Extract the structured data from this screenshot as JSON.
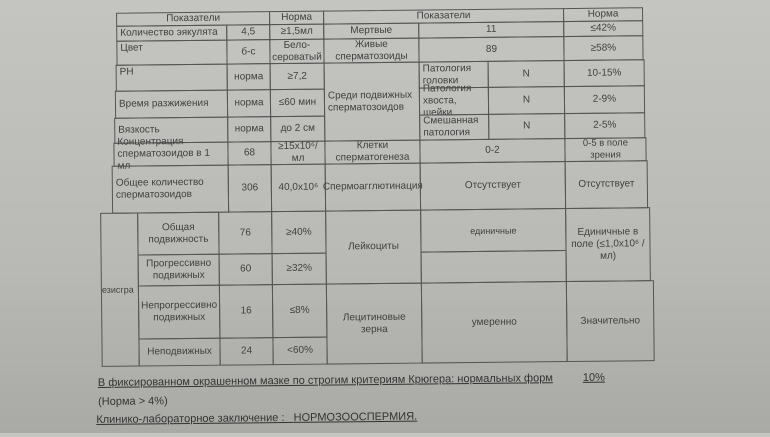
{
  "left": {
    "header": {
      "indicator": "Показатели",
      "norm": "Норма"
    },
    "rows": [
      {
        "label": "Количество эякулята",
        "value": "4,5",
        "norm": "≥1,5мл"
      },
      {
        "label": "Цвет",
        "value": "б-с",
        "norm": "Бело-сероватый"
      },
      {
        "label": "PH",
        "value": "норма",
        "norm": "≥7,2"
      },
      {
        "label": "Время разжижения",
        "value": "норма",
        "norm": "≤60 мин"
      },
      {
        "label": "Вязкость",
        "value": "норма",
        "norm": "до 2 см"
      },
      {
        "label": "Концентрация сперматозоидов в 1 мл",
        "value": "68",
        "norm": "≥15x10⁶/мл"
      },
      {
        "label": "Общее количество сперматозоидов",
        "value": "306",
        "norm": "40,0x10⁶"
      }
    ],
    "group_label": "езисгра",
    "motility": [
      {
        "label": "Общая подвижность",
        "value": "76",
        "norm": "≥40%"
      },
      {
        "label": "Прогрессивно подвижных",
        "value": "60",
        "norm": "≥32%"
      },
      {
        "label": "Непрогрессивно подвижных",
        "value": "16",
        "norm": "≤8%"
      },
      {
        "label": "Неподвижных",
        "value": "24",
        "norm": "<60%"
      }
    ]
  },
  "right": {
    "header": {
      "indicator": "Показатели",
      "norm": "Норма"
    },
    "dead": {
      "label": "Мертвые",
      "value": "11",
      "norm": "≤42%"
    },
    "alive": {
      "label": "Живые сперматозоиды",
      "value": "89",
      "norm": "≥58%"
    },
    "motile_label": "Среди подвижных сперматозоидов",
    "pathologies": [
      {
        "label": "Патология головки",
        "value": "N",
        "norm": "10-15%"
      },
      {
        "label": "Патология хвоста, шейки",
        "value": "N",
        "norm": "2-9%"
      },
      {
        "label": "Смешанная патология",
        "value": "N",
        "norm": "2-5%"
      }
    ],
    "spermatogenesis": {
      "label": "Клетки сперматогенеза",
      "value": "0-2",
      "norm": "0-5 в поле зрения"
    },
    "agglutination": {
      "label": "Спермоагглютинация",
      "value": "Отсутствует",
      "norm": "Отсутствует"
    },
    "leukocytes": {
      "label": "Лейкоциты",
      "value": "единичные",
      "value2": "",
      "norm": "Единичные в поле (≤1,0x10⁶ / мл)"
    },
    "lecithin": {
      "label": "Лецитиновые зерна",
      "value": "умеренно",
      "norm": "Значительно"
    }
  },
  "footer": {
    "kruger": "В фиксированном окрашенном мазке по строгим критериям Крюгера:  нормальных форм",
    "kruger_value": "10%",
    "kruger_norm": "(Норма > 4%)",
    "conclusion_label": "Клинико-лабораторное заключение :",
    "conclusion_value": "НОРМОЗООСПЕРМИЯ."
  }
}
